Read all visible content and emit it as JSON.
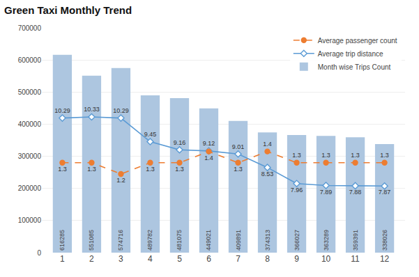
{
  "chart_data": {
    "type": "bar",
    "title": "Green Taxi Monthly Trend",
    "x": [
      1,
      2,
      3,
      4,
      5,
      6,
      7,
      8,
      9,
      10,
      11,
      12
    ],
    "xlim": [
      0.3,
      12.7
    ],
    "xticks": [
      1,
      2,
      3,
      4,
      5,
      6,
      7,
      8,
      9,
      10,
      11,
      12
    ],
    "ylim": [
      0,
      700000
    ],
    "yticks": [
      0,
      100000,
      200000,
      300000,
      400000,
      500000,
      600000,
      700000
    ],
    "y2lim": [
      5.5,
      13.5
    ],
    "y3lim": [
      0.5,
      2.5
    ],
    "grid": true,
    "legend": "top right",
    "data_labels": true,
    "series": [
      {
        "name": "Month wise Trips Count",
        "type": "bar",
        "color": "#adc6e0",
        "values": [
          616285,
          551085,
          574716,
          489782,
          481075,
          449021,
          409891,
          374313,
          366027,
          363289,
          359391,
          338026
        ]
      },
      {
        "name": "Average trip distance",
        "type": "line",
        "axis": "y2",
        "color": "#5b9bd5",
        "marker": "diamond",
        "line_style": "solid",
        "values": [
          10.29,
          10.33,
          10.29,
          9.45,
          9.16,
          9.12,
          9.01,
          8.53,
          7.96,
          7.89,
          7.88,
          7.87
        ]
      },
      {
        "name": "Average passenger count",
        "type": "line",
        "axis": "y3",
        "color": "#ed7d31",
        "marker": "circle",
        "line_style": "dashed",
        "values": [
          1.3,
          1.3,
          1.2,
          1.3,
          1.3,
          1.4,
          1.3,
          1.4,
          1.3,
          1.3,
          1.3,
          1.3
        ]
      }
    ]
  }
}
